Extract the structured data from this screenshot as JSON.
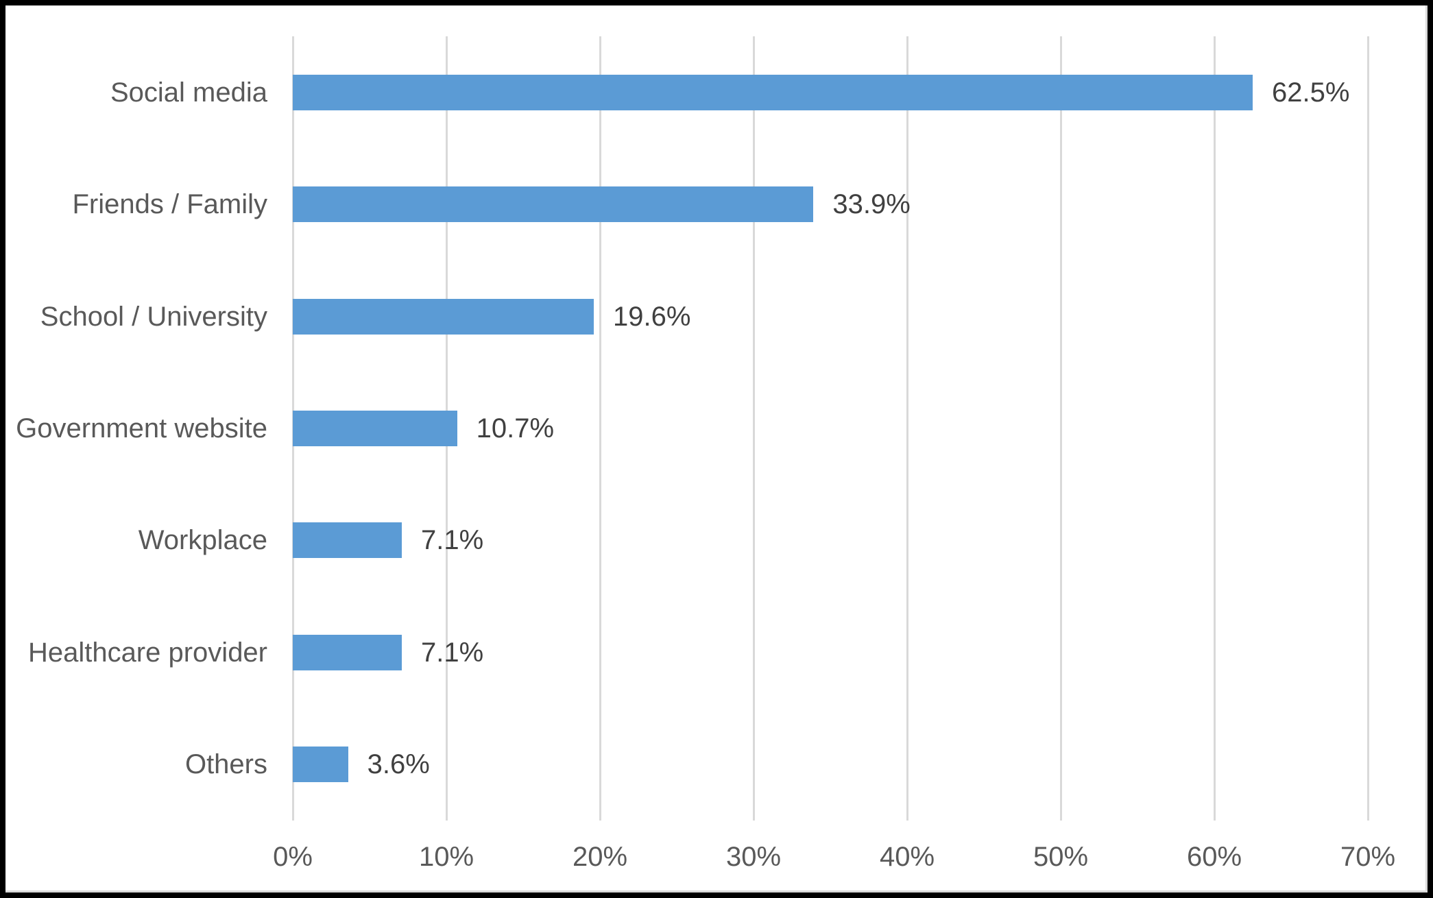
{
  "chart_data": {
    "type": "bar",
    "orientation": "horizontal",
    "title": "",
    "categories": [
      "Social media",
      "Friends / Family",
      "School / University",
      "Government website",
      "Workplace",
      "Healthcare provider",
      "Others"
    ],
    "values": [
      62.5,
      33.9,
      19.6,
      10.7,
      7.1,
      7.1,
      3.6
    ],
    "data_labels": [
      "62.5%",
      "33.9%",
      "19.6%",
      "10.7%",
      "7.1%",
      "7.1%",
      "3.6%"
    ],
    "xlabel": "",
    "ylabel": "",
    "x_axis": {
      "min": 0,
      "max": 70,
      "tick_step": 10,
      "ticks": [
        "0%",
        "10%",
        "20%",
        "30%",
        "40%",
        "50%",
        "60%",
        "70%"
      ]
    },
    "grid": "vertical-gridlines-on",
    "legend": "none",
    "colors": {
      "bar": "#5b9bd5",
      "data_label_text": "#404040",
      "axis_text": "#595959",
      "gridline": "#d9d9d9",
      "background": "#ffffff",
      "frame_border": "#000000"
    }
  }
}
